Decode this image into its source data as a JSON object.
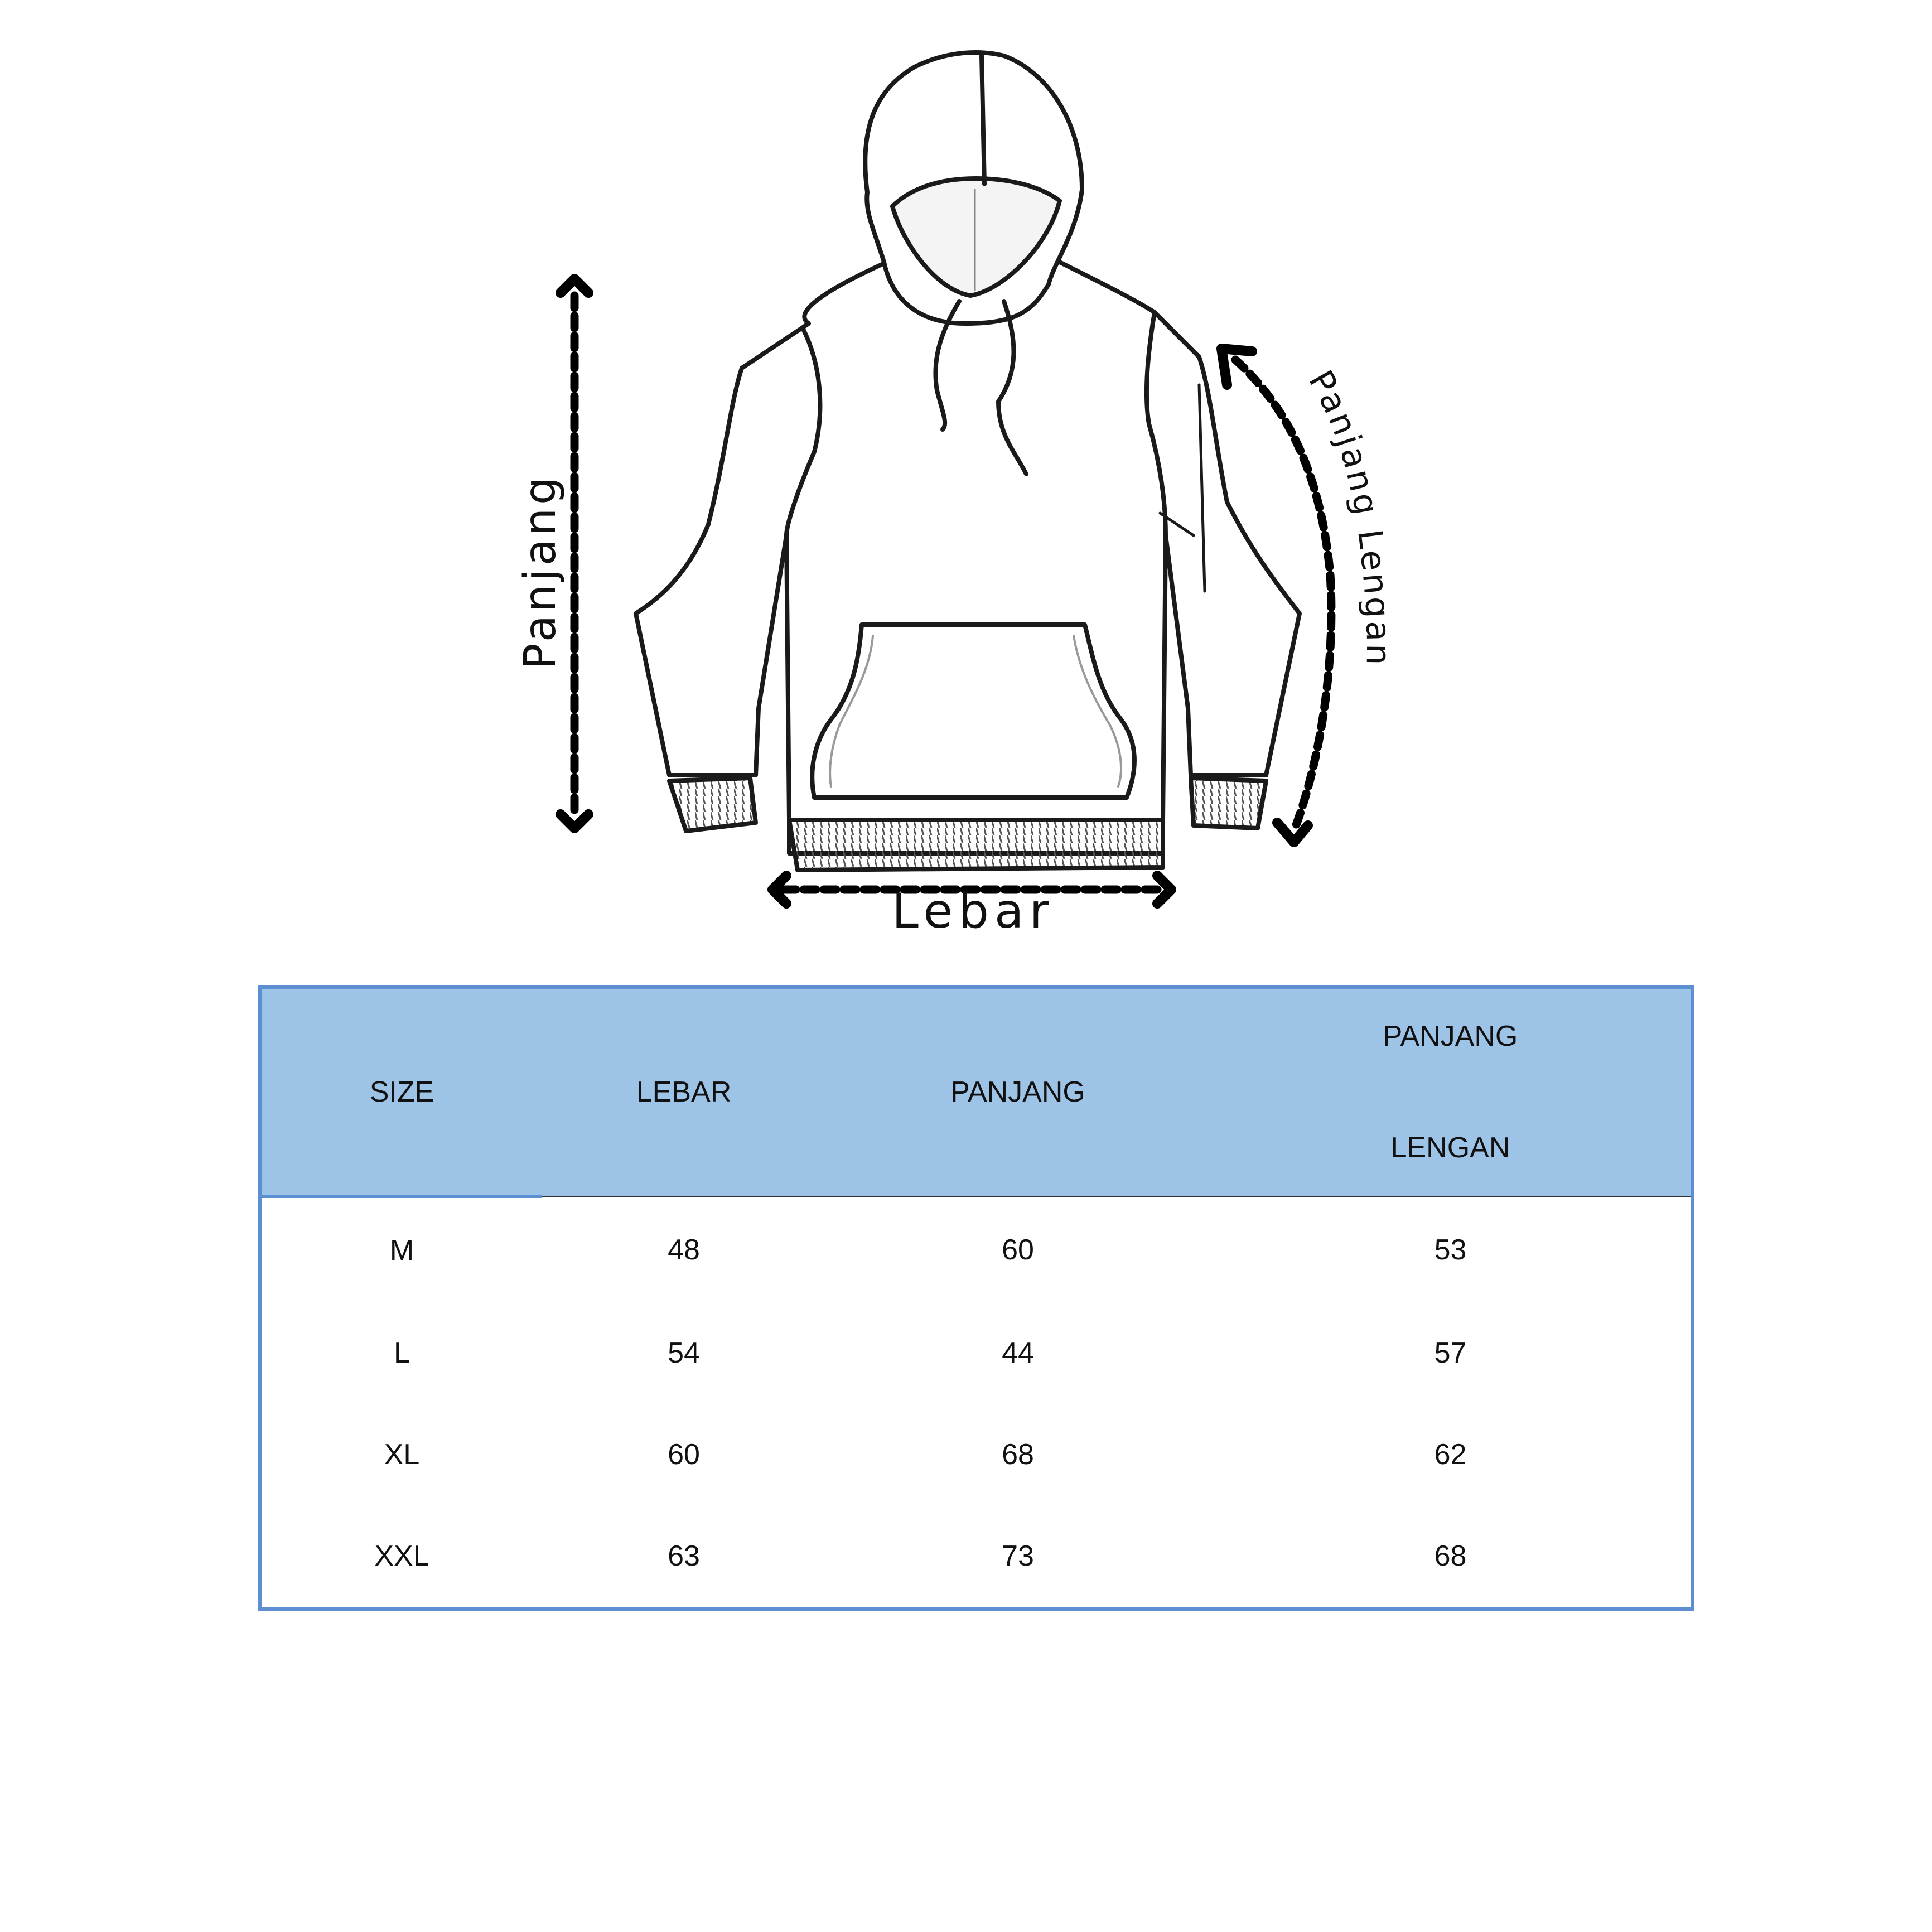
{
  "diagram": {
    "label_length": "Panjang",
    "label_width": "Lebar",
    "label_sleeve": "Panjang Lengan"
  },
  "size_table": {
    "headers": {
      "size": "SIZE",
      "lebar": "LEBAR",
      "panjang": "PANJANG",
      "panjang_lengan_line1": "PANJANG",
      "panjang_lengan_line2": "LENGAN"
    },
    "rows": [
      {
        "size": "M",
        "lebar": "48",
        "panjang": "60",
        "panjang_lengan": "53"
      },
      {
        "size": "L",
        "lebar": "54",
        "panjang": "44",
        "panjang_lengan": "57"
      },
      {
        "size": "XL",
        "lebar": "60",
        "panjang": "68",
        "panjang_lengan": "62"
      },
      {
        "size": "XXL",
        "lebar": "63",
        "panjang": "73",
        "panjang_lengan": "68"
      }
    ]
  },
  "colors": {
    "header_bg": "#9dc3e6",
    "border": "#5b8fd2"
  }
}
